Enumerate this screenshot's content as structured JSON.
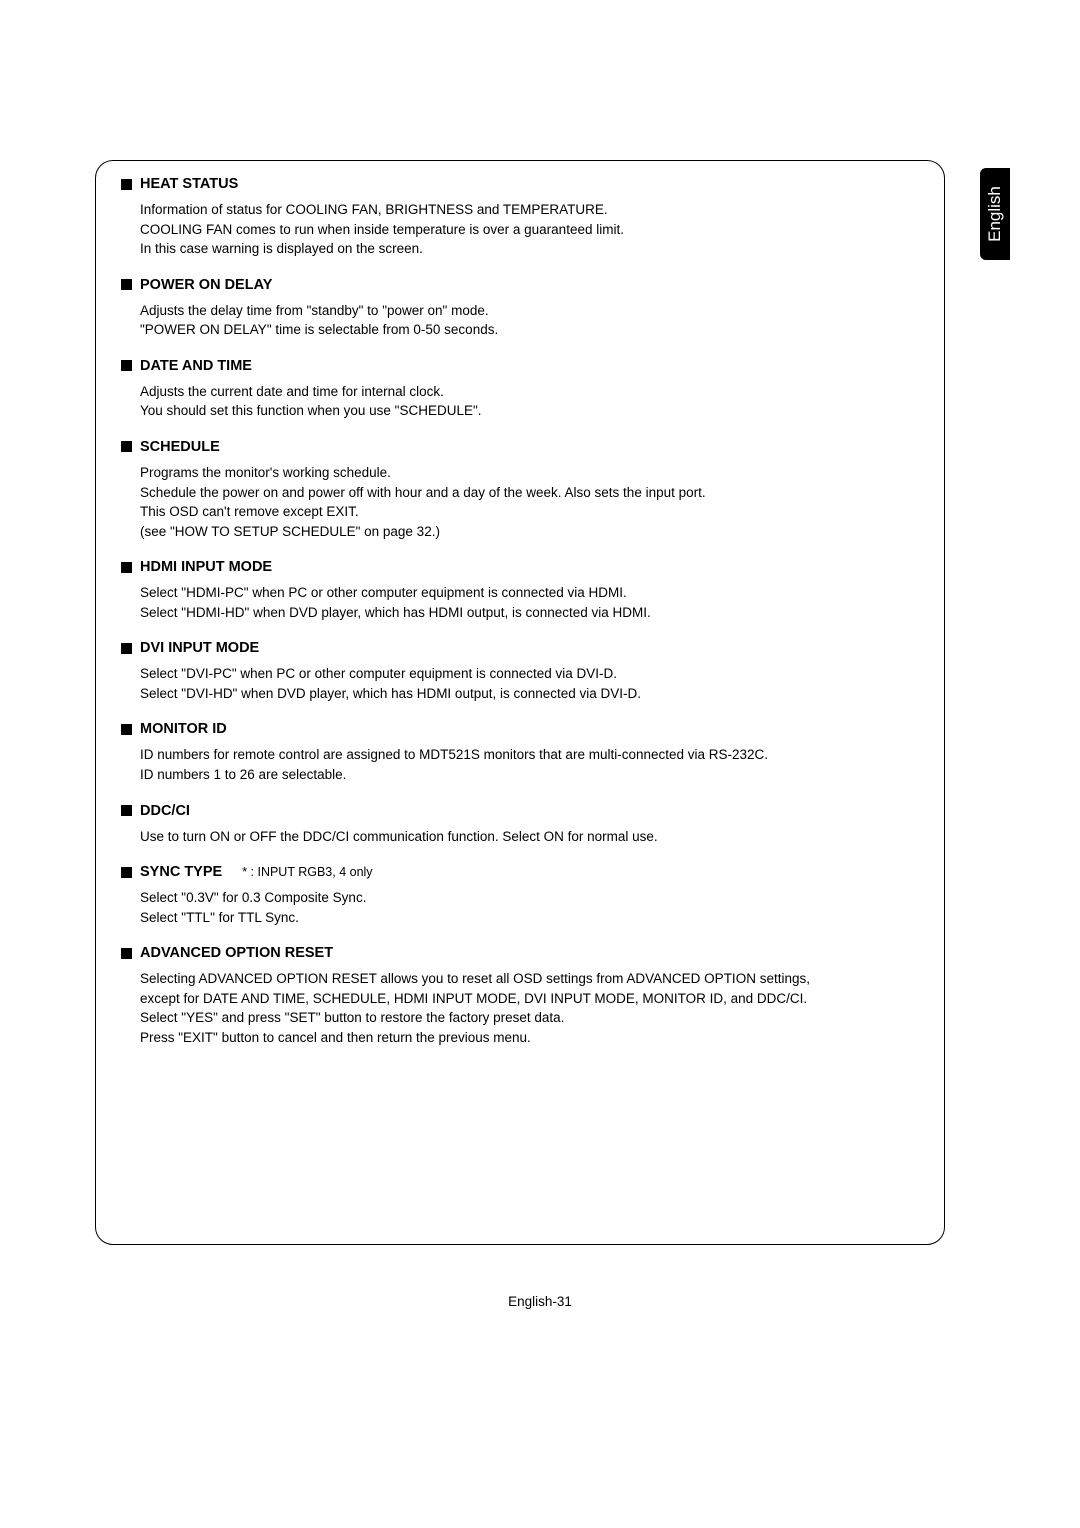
{
  "language_tab": "English",
  "page_footer": "English-31",
  "sections": [
    {
      "title": "HEAT STATUS",
      "note": "",
      "lines": [
        "Information of status for COOLING FAN, BRIGHTNESS and TEMPERATURE.",
        "COOLING FAN comes to run when inside temperature is over a guaranteed limit.",
        "In this case warning is displayed on the screen."
      ]
    },
    {
      "title": "POWER ON DELAY",
      "note": "",
      "lines": [
        "Adjusts the delay time from \"standby\" to \"power on\" mode.",
        "\"POWER ON DELAY\" time is selectable from 0-50 seconds."
      ]
    },
    {
      "title": "DATE AND TIME",
      "note": "",
      "lines": [
        "Adjusts the current date and time for internal clock.",
        "You should set this function when you use \"SCHEDULE\"."
      ]
    },
    {
      "title": "SCHEDULE",
      "note": "",
      "lines": [
        "Programs the monitor's working schedule.",
        "Schedule the power on and power off with hour and a day of the week. Also sets the input port.",
        "This OSD can't remove except EXIT.",
        "(see \"HOW TO SETUP SCHEDULE\" on page 32.)"
      ]
    },
    {
      "title": "HDMI INPUT MODE",
      "note": "",
      "lines": [
        "Select \"HDMI-PC\" when PC or other computer equipment is connected via HDMI.",
        "Select \"HDMI-HD\" when DVD player, which has HDMI output, is connected via HDMI."
      ]
    },
    {
      "title": "DVI INPUT MODE",
      "note": "",
      "lines": [
        "Select \"DVI-PC\" when PC or other computer equipment is connected via DVI-D.",
        "Select \"DVI-HD\" when DVD player, which has HDMI output, is connected via DVI-D."
      ]
    },
    {
      "title": "MONITOR ID",
      "note": "",
      "lines": [
        "ID numbers for remote control are assigned to MDT521S monitors that are multi-connected via RS-232C.",
        "ID numbers 1 to 26 are selectable."
      ]
    },
    {
      "title": "DDC/CI",
      "note": "",
      "lines": [
        "Use to turn ON or OFF the DDC/CI communication function. Select ON for normal use."
      ]
    },
    {
      "title": "SYNC TYPE",
      "note": "* : INPUT RGB3, 4 only",
      "lines": [
        "Select \"0.3V\" for 0.3 Composite Sync.",
        "Select  \"TTL\" for TTL Sync."
      ]
    },
    {
      "title": "ADVANCED OPTION RESET",
      "note": "",
      "lines": [
        "Selecting ADVANCED OPTION RESET allows you to reset all OSD settings from ADVANCED OPTION settings,",
        "except for DATE AND TIME, SCHEDULE, HDMI INPUT MODE, DVI INPUT MODE, MONITOR ID, and DDC/CI.",
        "Select \"YES\" and press \"SET\" button to restore the factory preset data.",
        "Press \"EXIT\" button to cancel and then return the previous menu."
      ]
    }
  ]
}
